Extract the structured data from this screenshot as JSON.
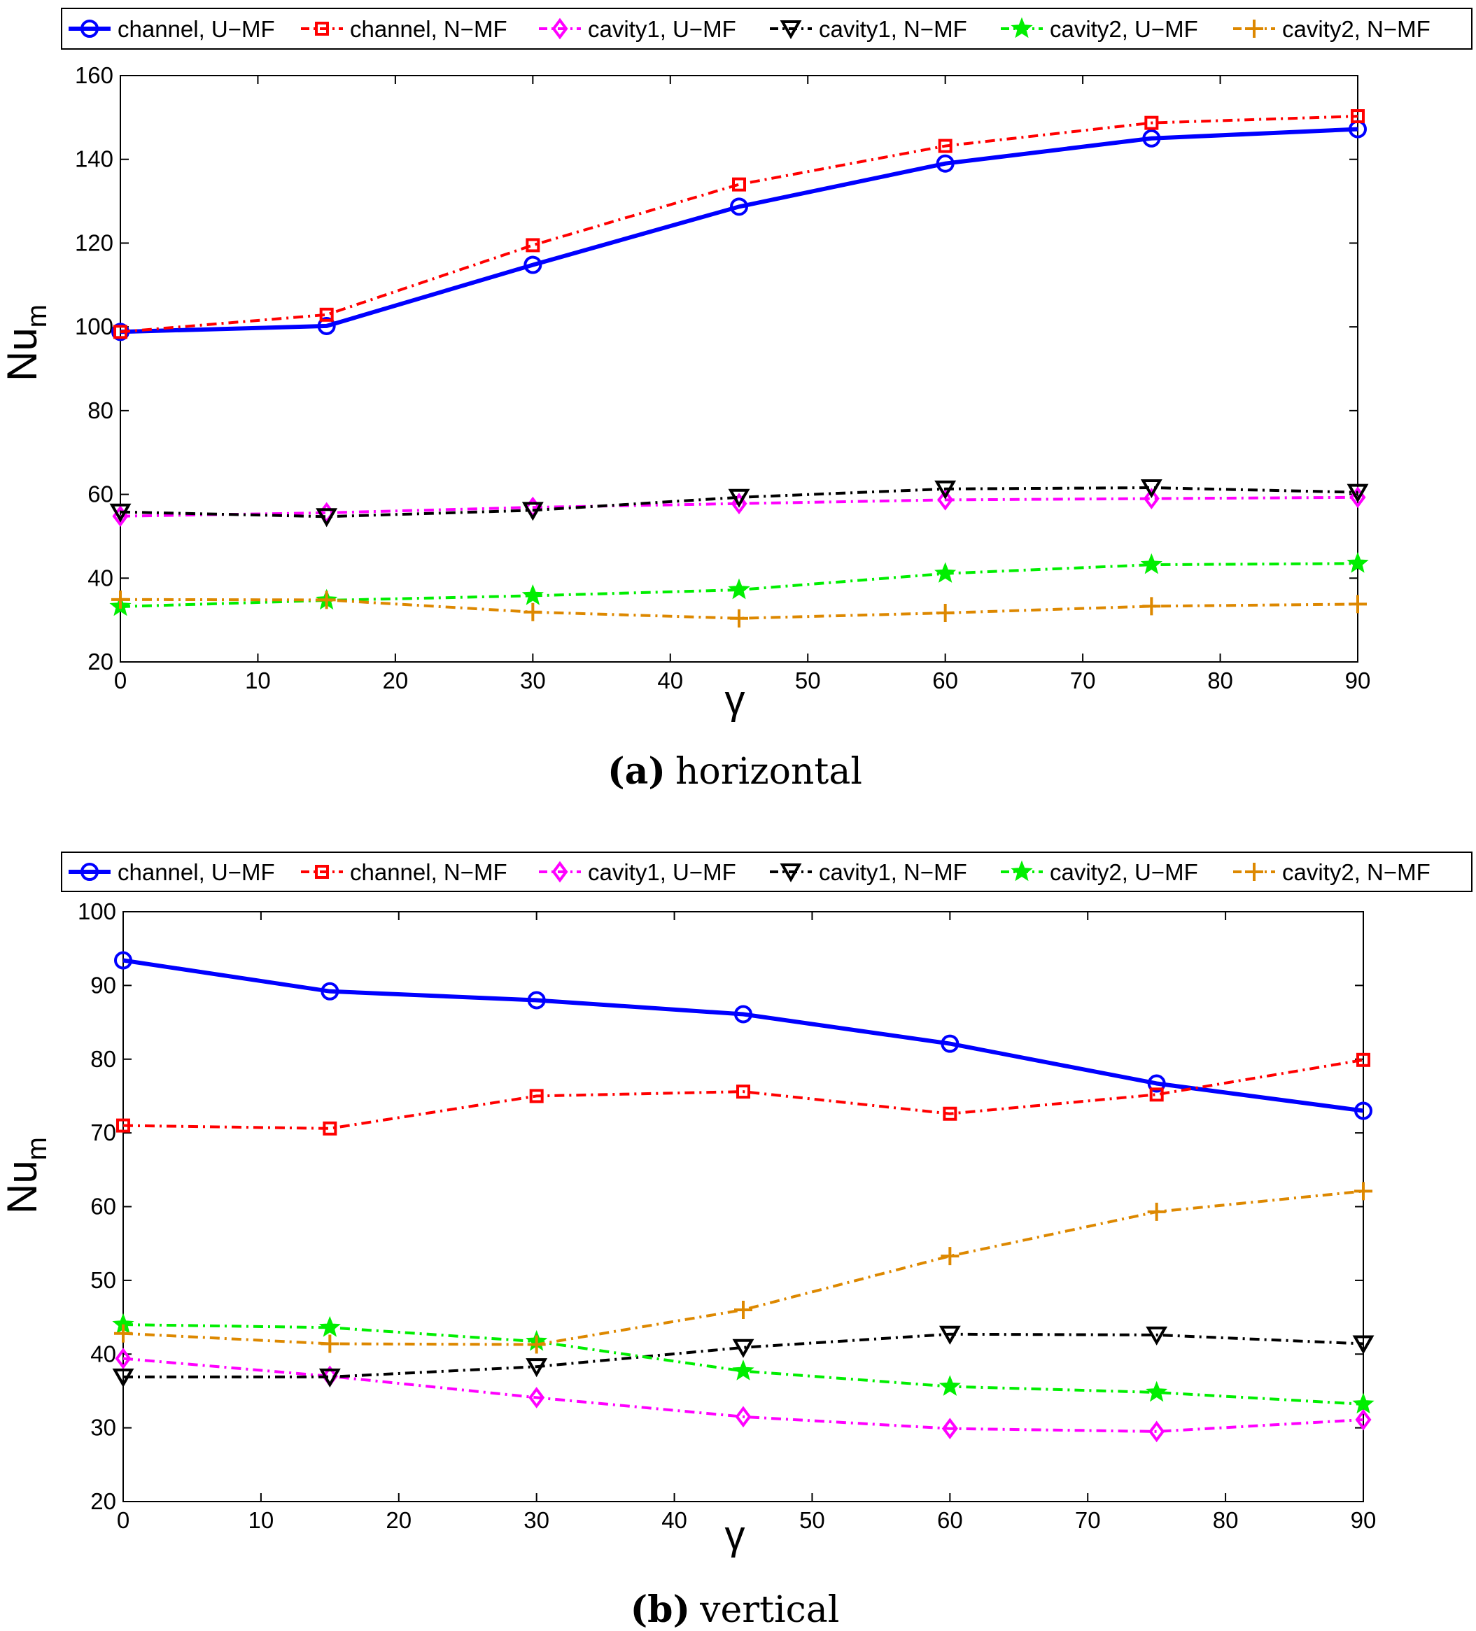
{
  "chart_data": [
    {
      "type": "line",
      "title": "",
      "caption_label": "(a)",
      "caption_text": "horizontal",
      "xlabel": "γ",
      "ylabel_main": "Nu",
      "ylabel_sub": "m",
      "xlim": [
        0,
        90
      ],
      "ylim": [
        20,
        160
      ],
      "xticks": [
        0,
        10,
        20,
        30,
        40,
        50,
        60,
        70,
        80,
        90
      ],
      "yticks": [
        20,
        40,
        60,
        80,
        100,
        120,
        140,
        160
      ],
      "x": [
        0,
        15,
        30,
        45,
        60,
        75,
        90
      ],
      "series": [
        {
          "name": "channel, U−MF",
          "color": "#0000ff",
          "marker": "circle",
          "dash": "solid",
          "values": [
            98.8,
            100.2,
            114.8,
            128.7,
            139.0,
            145.0,
            147.2
          ]
        },
        {
          "name": "channel, N−MF",
          "color": "#ff0000",
          "marker": "square",
          "dash": "dashdot",
          "values": [
            98.8,
            102.9,
            119.5,
            134.0,
            143.2,
            148.7,
            150.3
          ]
        },
        {
          "name": "cavity1, U−MF",
          "color": "#ff00ff",
          "marker": "diamond",
          "dash": "dashdot",
          "values": [
            54.8,
            55.6,
            56.9,
            57.8,
            58.7,
            59.0,
            59.3
          ]
        },
        {
          "name": "cavity1, N−MF",
          "color": "#000000",
          "marker": "triangle-down",
          "dash": "dashdot",
          "values": [
            55.8,
            54.7,
            56.2,
            59.3,
            61.3,
            61.6,
            60.5
          ]
        },
        {
          "name": "cavity2, U−MF",
          "color": "#00ee00",
          "marker": "star",
          "dash": "dashdot",
          "values": [
            33.2,
            34.7,
            35.8,
            37.2,
            41.1,
            43.2,
            43.5
          ]
        },
        {
          "name": "cavity2, N−MF",
          "color": "#dd8800",
          "marker": "plus",
          "dash": "dashdot",
          "values": [
            34.9,
            34.8,
            31.9,
            30.4,
            31.7,
            33.3,
            33.8
          ]
        }
      ]
    },
    {
      "type": "line",
      "title": "",
      "caption_label": "(b)",
      "caption_text": "vertical",
      "xlabel": "γ",
      "ylabel_main": "Nu",
      "ylabel_sub": "m",
      "xlim": [
        0,
        90
      ],
      "ylim": [
        20,
        100
      ],
      "xticks": [
        0,
        10,
        20,
        30,
        40,
        50,
        60,
        70,
        80,
        90
      ],
      "yticks": [
        20,
        30,
        40,
        50,
        60,
        70,
        80,
        90,
        100
      ],
      "x": [
        0,
        15,
        30,
        45,
        60,
        75,
        90
      ],
      "series": [
        {
          "name": "channel, U−MF",
          "color": "#0000ff",
          "marker": "circle",
          "dash": "solid",
          "values": [
            93.4,
            89.2,
            88.0,
            86.1,
            82.1,
            76.7,
            73.0
          ]
        },
        {
          "name": "channel, N−MF",
          "color": "#ff0000",
          "marker": "square",
          "dash": "dashdot",
          "values": [
            71.0,
            70.6,
            75.0,
            75.6,
            72.6,
            75.2,
            79.9
          ]
        },
        {
          "name": "cavity1, U−MF",
          "color": "#ff00ff",
          "marker": "diamond",
          "dash": "dashdot",
          "values": [
            39.4,
            37.0,
            34.1,
            31.5,
            29.9,
            29.5,
            31.1
          ]
        },
        {
          "name": "cavity1, N−MF",
          "color": "#000000",
          "marker": "triangle-down",
          "dash": "dashdot",
          "values": [
            36.9,
            36.9,
            38.3,
            40.9,
            42.7,
            42.6,
            41.4
          ]
        },
        {
          "name": "cavity2, U−MF",
          "color": "#00ee00",
          "marker": "star",
          "dash": "dashdot",
          "values": [
            44.0,
            43.6,
            41.7,
            37.7,
            35.6,
            34.8,
            33.2
          ]
        },
        {
          "name": "cavity2, N−MF",
          "color": "#dd8800",
          "marker": "plus",
          "dash": "dashdot",
          "values": [
            42.8,
            41.4,
            41.3,
            46.0,
            53.3,
            59.3,
            62.1
          ]
        }
      ]
    }
  ]
}
